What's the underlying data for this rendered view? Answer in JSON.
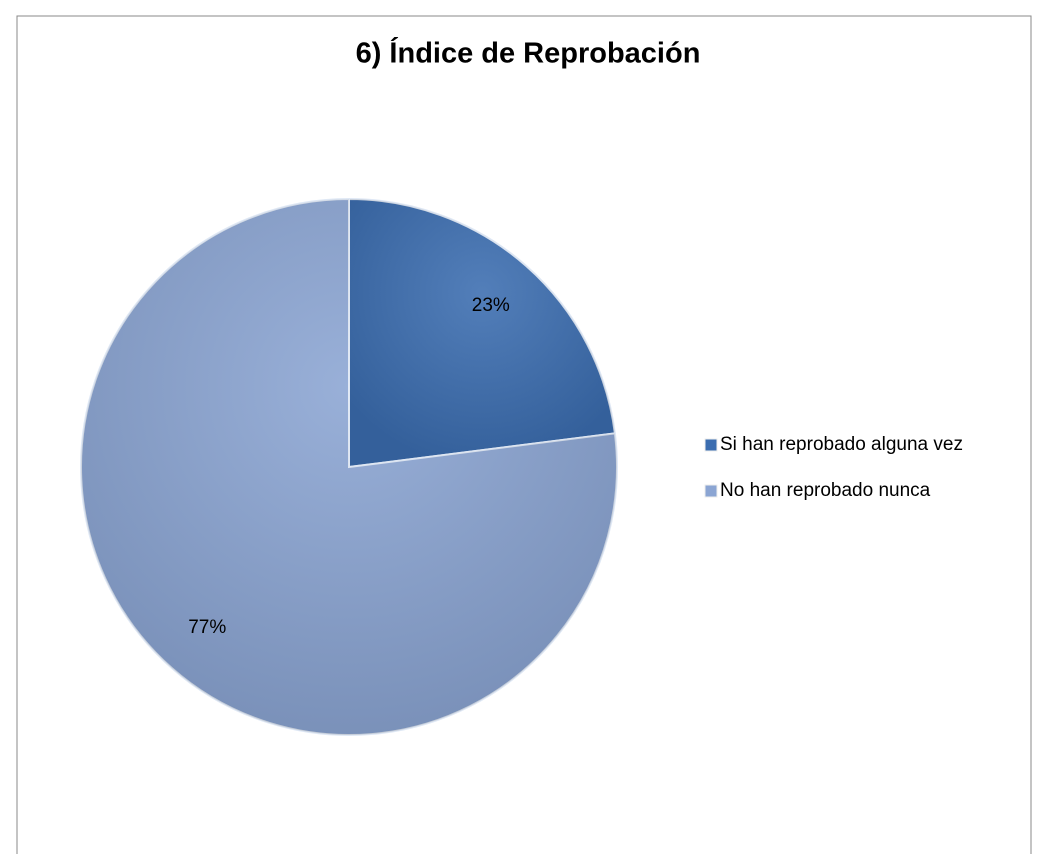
{
  "chart_data": {
    "type": "pie",
    "title": "6) Índice de Reprobación",
    "categories": [
      "Si han reprobado alguna vez",
      "No han reprobado nunca"
    ],
    "values": [
      23,
      77
    ],
    "value_labels": [
      "23%",
      "77%"
    ],
    "colors": [
      "#3b6db0",
      "#8ba5d3"
    ],
    "legend": "right"
  }
}
